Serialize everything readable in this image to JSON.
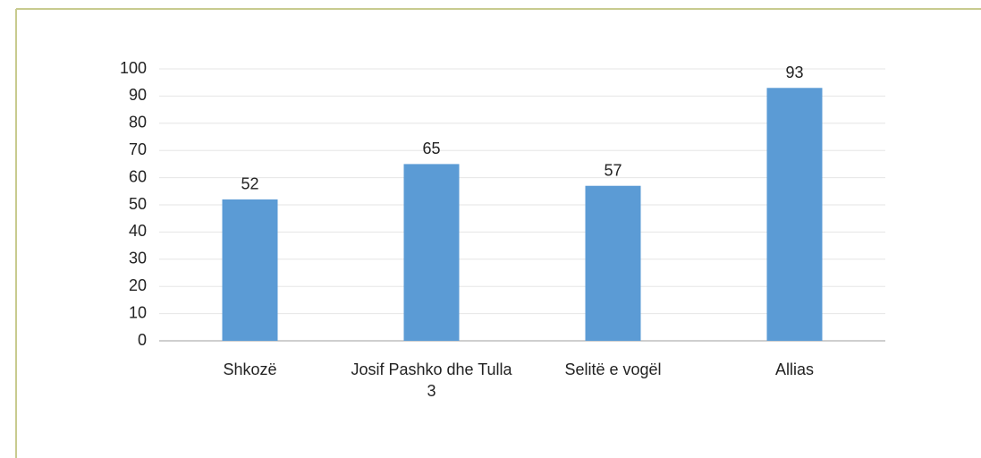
{
  "chart_data": {
    "type": "bar",
    "categories": [
      "Shkozë",
      "Josif Pashko dhe Tulla 3",
      "Selitë e vogël",
      "Allias"
    ],
    "values": [
      52,
      65,
      57,
      93
    ],
    "color": "#5b9bd5",
    "ylim": [
      0,
      100
    ],
    "yticks": [
      0,
      10,
      20,
      30,
      40,
      50,
      60,
      70,
      80,
      90,
      100
    ],
    "grid": true
  }
}
